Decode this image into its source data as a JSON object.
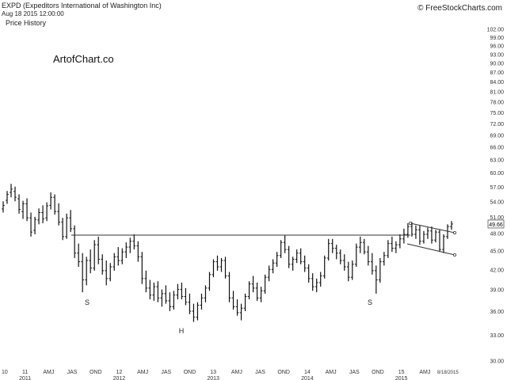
{
  "header": {
    "title": "EXPD (Expeditors International of Washington Inc)",
    "timestamp": "Aug 18 2015 12:00:00",
    "panel_label": "Price History",
    "source": "© FreeStockCharts.com"
  },
  "watermark": "ArtofChart.co",
  "colors": {
    "bars": "#111111",
    "lines": "#333333",
    "axis_text": "#333333",
    "background": "#ffffff"
  },
  "chart_data": {
    "type": "bar",
    "title": "EXPD (Expeditors International of Washington Inc)",
    "subtitle": "Price History",
    "xlabel": "",
    "ylabel": "",
    "y_scale": "log",
    "ylim": [
      29.6,
      104
    ],
    "grid": false,
    "y_ticks": [
      "102.00",
      "99.00",
      "96.00",
      "93.00",
      "90.00",
      "87.00",
      "84.00",
      "81.00",
      "78.00",
      "75.00",
      "72.00",
      "69.00",
      "66.00",
      "63.00",
      "60.00",
      "57.00",
      "54.00",
      "51.00",
      "48.00",
      "45.00",
      "42.00",
      "39.00",
      "36.00",
      "33.00",
      "30.00"
    ],
    "x_ticks": [
      {
        "label": "10",
        "year": ""
      },
      {
        "label": "11",
        "year": "2011"
      },
      {
        "label": "AMJ",
        "year": ""
      },
      {
        "label": "JAS",
        "year": ""
      },
      {
        "label": "OND",
        "year": ""
      },
      {
        "label": "12",
        "year": "2012"
      },
      {
        "label": "AMJ",
        "year": ""
      },
      {
        "label": "JAS",
        "year": ""
      },
      {
        "label": "OND",
        "year": ""
      },
      {
        "label": "13",
        "year": "2013"
      },
      {
        "label": "AMJ",
        "year": ""
      },
      {
        "label": "JAS",
        "year": ""
      },
      {
        "label": "OND",
        "year": ""
      },
      {
        "label": "14",
        "year": "2014"
      },
      {
        "label": "AMJ",
        "year": ""
      },
      {
        "label": "JAS",
        "year": ""
      },
      {
        "label": "OND",
        "year": ""
      },
      {
        "label": "15",
        "year": "2015"
      },
      {
        "label": "AMJ",
        "year": ""
      },
      {
        "label": "8/18/2015",
        "year": ""
      }
    ],
    "last_price_label": "49.66",
    "series": [
      {
        "values": [
          [
            52.5,
            54.0,
            51.8,
            53.2
          ],
          [
            54.2,
            56.1,
            53.5,
            55.4
          ],
          [
            55.8,
            57.6,
            54.8,
            56.5
          ],
          [
            56.0,
            57.0,
            54.0,
            54.8
          ],
          [
            54.5,
            55.4,
            51.6,
            52.4
          ],
          [
            52.0,
            54.1,
            50.6,
            53.5
          ],
          [
            53.5,
            54.6,
            50.2,
            50.8
          ],
          [
            50.8,
            51.8,
            47.4,
            48.2
          ],
          [
            48.5,
            51.0,
            47.8,
            50.5
          ],
          [
            50.4,
            52.6,
            49.6,
            51.8
          ],
          [
            51.8,
            53.2,
            49.8,
            50.6
          ],
          [
            50.8,
            53.8,
            50.2,
            53.1
          ],
          [
            53.2,
            55.8,
            52.4,
            54.8
          ],
          [
            54.8,
            55.4,
            51.4,
            52.0
          ],
          [
            52.0,
            53.6,
            49.4,
            50.0
          ],
          [
            50.0,
            50.8,
            46.8,
            47.4
          ],
          [
            47.4,
            51.6,
            47.0,
            50.8
          ],
          [
            50.8,
            52.3,
            48.2,
            48.8
          ],
          [
            48.8,
            49.4,
            43.8,
            44.6
          ],
          [
            44.6,
            46.2,
            42.4,
            43.2
          ],
          [
            43.2,
            44.6,
            38.6,
            40.4
          ],
          [
            40.4,
            44.0,
            39.6,
            43.4
          ],
          [
            43.4,
            45.2,
            41.4,
            42.2
          ],
          [
            42.2,
            46.8,
            41.8,
            46.0
          ],
          [
            46.0,
            47.4,
            42.8,
            43.6
          ],
          [
            43.6,
            44.4,
            41.2,
            41.8
          ],
          [
            41.8,
            43.4,
            39.6,
            40.6
          ],
          [
            40.6,
            43.0,
            40.2,
            42.4
          ],
          [
            42.4,
            44.6,
            41.8,
            44.0
          ],
          [
            44.0,
            45.6,
            42.6,
            43.4
          ],
          [
            43.4,
            45.4,
            42.8,
            44.8
          ],
          [
            44.8,
            46.4,
            43.8,
            45.6
          ],
          [
            45.6,
            47.2,
            44.6,
            46.6
          ],
          [
            46.6,
            47.8,
            45.2,
            45.8
          ],
          [
            45.8,
            46.6,
            43.2,
            44.0
          ],
          [
            44.0,
            44.8,
            39.8,
            40.6
          ],
          [
            40.6,
            41.8,
            38.6,
            39.2
          ],
          [
            39.2,
            40.4,
            37.6,
            38.2
          ],
          [
            38.2,
            40.0,
            37.4,
            39.4
          ],
          [
            39.4,
            40.2,
            37.2,
            37.8
          ],
          [
            37.8,
            39.0,
            36.6,
            38.4
          ],
          [
            38.4,
            39.6,
            37.0,
            37.4
          ],
          [
            37.4,
            38.6,
            36.0,
            36.6
          ],
          [
            36.6,
            38.8,
            36.2,
            38.2
          ],
          [
            38.2,
            39.8,
            37.6,
            39.0
          ],
          [
            39.0,
            40.0,
            37.6,
            38.0
          ],
          [
            38.0,
            39.2,
            36.8,
            37.2
          ],
          [
            37.2,
            38.4,
            35.6,
            36.0
          ],
          [
            36.0,
            37.0,
            34.6,
            35.2
          ],
          [
            35.2,
            37.2,
            34.8,
            36.8
          ],
          [
            36.8,
            38.4,
            36.2,
            37.8
          ],
          [
            37.8,
            39.6,
            37.2,
            39.2
          ],
          [
            39.2,
            41.6,
            38.8,
            41.2
          ],
          [
            41.2,
            43.6,
            40.8,
            43.2
          ],
          [
            43.2,
            44.2,
            41.8,
            42.4
          ],
          [
            42.4,
            43.8,
            41.6,
            43.4
          ],
          [
            43.4,
            44.0,
            40.6,
            41.0
          ],
          [
            41.0,
            41.6,
            37.2,
            37.8
          ],
          [
            37.8,
            38.8,
            36.2,
            36.6
          ],
          [
            36.6,
            37.6,
            35.4,
            35.8
          ],
          [
            35.8,
            37.0,
            34.8,
            36.4
          ],
          [
            36.4,
            38.4,
            36.0,
            38.0
          ],
          [
            38.0,
            40.2,
            37.6,
            39.8
          ],
          [
            39.8,
            41.0,
            38.6,
            39.2
          ],
          [
            39.2,
            40.0,
            37.4,
            37.8
          ],
          [
            37.8,
            39.4,
            37.2,
            38.8
          ],
          [
            38.8,
            41.2,
            38.4,
            40.8
          ],
          [
            40.8,
            42.6,
            40.2,
            42.0
          ],
          [
            42.0,
            43.6,
            41.4,
            43.0
          ],
          [
            43.0,
            44.8,
            42.4,
            44.2
          ],
          [
            44.2,
            46.8,
            43.8,
            46.4
          ],
          [
            46.4,
            47.6,
            44.6,
            45.2
          ],
          [
            45.2,
            45.8,
            42.2,
            42.8
          ],
          [
            42.8,
            44.0,
            41.8,
            43.6
          ],
          [
            43.6,
            45.2,
            43.0,
            44.6
          ],
          [
            44.6,
            45.4,
            42.8,
            43.2
          ],
          [
            43.2,
            44.2,
            41.6,
            42.2
          ],
          [
            42.2,
            42.8,
            40.0,
            40.6
          ],
          [
            40.6,
            41.4,
            38.8,
            39.4
          ],
          [
            39.4,
            40.6,
            38.6,
            40.0
          ],
          [
            40.0,
            41.6,
            39.4,
            41.0
          ],
          [
            41.0,
            44.2,
            40.6,
            43.8
          ],
          [
            43.8,
            47.0,
            43.4,
            46.2
          ],
          [
            46.2,
            47.0,
            44.6,
            45.4
          ],
          [
            45.4,
            46.0,
            43.6,
            44.6
          ],
          [
            44.6,
            45.2,
            42.8,
            43.4
          ],
          [
            43.4,
            44.4,
            41.8,
            42.4
          ],
          [
            42.4,
            43.2,
            40.2,
            40.8
          ],
          [
            40.8,
            43.4,
            40.4,
            42.8
          ],
          [
            42.8,
            46.2,
            42.4,
            45.6
          ],
          [
            45.6,
            47.4,
            44.6,
            46.4
          ],
          [
            46.4,
            47.0,
            44.4,
            44.8
          ],
          [
            44.8,
            45.8,
            42.6,
            43.2
          ],
          [
            43.2,
            44.6,
            41.2,
            41.8
          ],
          [
            41.8,
            42.6,
            38.4,
            40.4
          ],
          [
            40.4,
            43.8,
            40.0,
            43.2
          ],
          [
            43.2,
            44.8,
            42.6,
            44.2
          ],
          [
            44.2,
            46.8,
            43.8,
            46.2
          ],
          [
            46.2,
            47.4,
            44.8,
            45.4
          ],
          [
            45.4,
            46.6,
            44.6,
            46.0
          ],
          [
            46.0,
            47.8,
            45.4,
            47.0
          ],
          [
            47.0,
            48.8,
            46.2,
            47.8
          ],
          [
            47.8,
            49.8,
            47.2,
            49.2
          ],
          [
            49.2,
            50.0,
            47.4,
            47.8
          ],
          [
            47.8,
            49.4,
            47.0,
            48.6
          ],
          [
            48.6,
            49.4,
            46.0,
            46.6
          ],
          [
            46.6,
            48.4,
            46.2,
            47.8
          ],
          [
            47.8,
            49.0,
            47.0,
            48.4
          ],
          [
            48.4,
            49.2,
            46.2,
            46.8
          ],
          [
            46.8,
            48.6,
            46.4,
            48.2
          ],
          [
            48.2,
            48.6,
            44.8,
            45.2
          ],
          [
            45.2,
            47.8,
            44.6,
            47.4
          ],
          [
            47.4,
            49.6,
            47.0,
            49.2
          ],
          [
            49.2,
            50.2,
            48.6,
            49.66
          ]
        ]
      }
    ],
    "annotations": [
      "S",
      "H",
      "S"
    ]
  }
}
